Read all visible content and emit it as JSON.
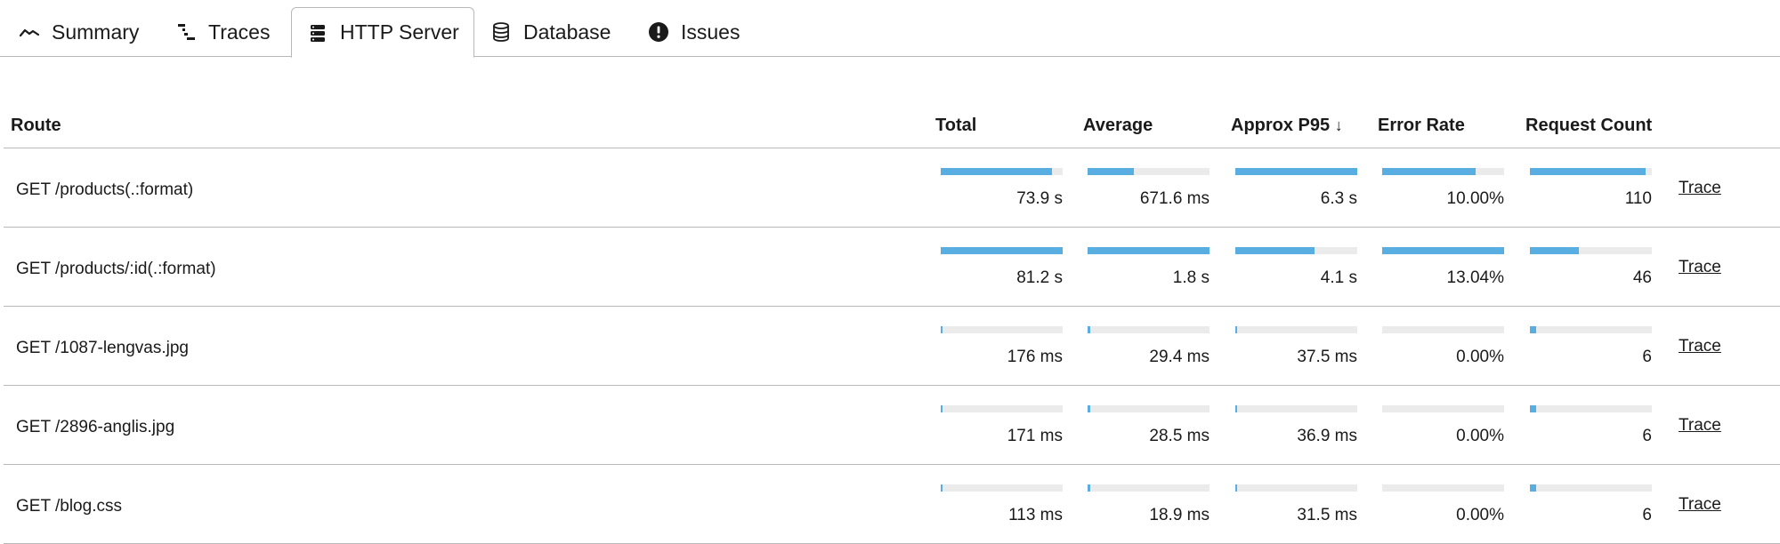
{
  "tabs": [
    {
      "id": "summary",
      "label": "Summary",
      "icon": "trend-line-icon",
      "active": false
    },
    {
      "id": "traces",
      "label": "Traces",
      "icon": "traces-icon",
      "active": false
    },
    {
      "id": "http-server",
      "label": "HTTP Server",
      "icon": "server-icon",
      "active": true
    },
    {
      "id": "database",
      "label": "Database",
      "icon": "database-icon",
      "active": false
    },
    {
      "id": "issues",
      "label": "Issues",
      "icon": "alert-circle-icon",
      "active": false
    }
  ],
  "table": {
    "headers": {
      "route": "Route",
      "total": "Total",
      "average": "Average",
      "p95": "Approx P95",
      "p95_sort_indicator": "↓",
      "error_rate": "Error Rate",
      "request_count": "Request Count"
    },
    "trace_label": "Trace",
    "rows": [
      {
        "route": "GET /products(.:format)",
        "total": {
          "label": "73.9 s",
          "fraction": 0.91
        },
        "average": {
          "label": "671.6 ms",
          "fraction": 0.38
        },
        "p95": {
          "label": "6.3 s",
          "fraction": 1.0
        },
        "error_rate": {
          "label": "10.00%",
          "fraction": 0.77
        },
        "request_count": {
          "label": "110",
          "fraction": 0.95
        }
      },
      {
        "route": "GET /products/:id(.:format)",
        "total": {
          "label": "81.2 s",
          "fraction": 1.0
        },
        "average": {
          "label": "1.8 s",
          "fraction": 1.0
        },
        "p95": {
          "label": "4.1 s",
          "fraction": 0.65
        },
        "error_rate": {
          "label": "13.04%",
          "fraction": 1.0
        },
        "request_count": {
          "label": "46",
          "fraction": 0.4
        }
      },
      {
        "route": "GET /1087-lengvas.jpg",
        "total": {
          "label": "176 ms",
          "fraction": 0.01
        },
        "average": {
          "label": "29.4 ms",
          "fraction": 0.02
        },
        "p95": {
          "label": "37.5 ms",
          "fraction": 0.01
        },
        "error_rate": {
          "label": "0.00%",
          "fraction": 0.0
        },
        "request_count": {
          "label": "6",
          "fraction": 0.05
        }
      },
      {
        "route": "GET /2896-anglis.jpg",
        "total": {
          "label": "171 ms",
          "fraction": 0.01
        },
        "average": {
          "label": "28.5 ms",
          "fraction": 0.02
        },
        "p95": {
          "label": "36.9 ms",
          "fraction": 0.01
        },
        "error_rate": {
          "label": "0.00%",
          "fraction": 0.0
        },
        "request_count": {
          "label": "6",
          "fraction": 0.05
        }
      },
      {
        "route": "GET /blog.css",
        "total": {
          "label": "113 ms",
          "fraction": 0.01
        },
        "average": {
          "label": "18.9 ms",
          "fraction": 0.02
        },
        "p95": {
          "label": "31.5 ms",
          "fraction": 0.01
        },
        "error_rate": {
          "label": "0.00%",
          "fraction": 0.0
        },
        "request_count": {
          "label": "6",
          "fraction": 0.05
        }
      }
    ]
  },
  "colors": {
    "bar_fill": "#58aee0",
    "bar_track": "#ebebeb",
    "divider": "#b8b8b8"
  }
}
